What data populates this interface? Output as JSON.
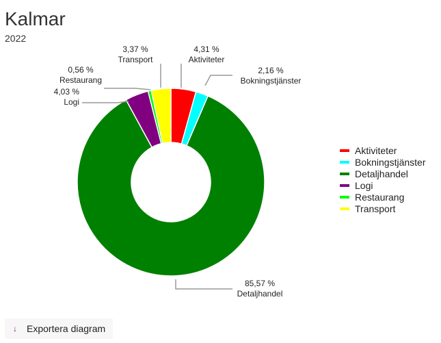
{
  "chart_data": {
    "type": "pie",
    "donut": true,
    "title": "Kalmar",
    "subtitle": "2022",
    "legend_position": "right",
    "slices": [
      {
        "name": "Aktiviteter",
        "value": 4.31,
        "label": "4,31 %",
        "color": "#ff0000"
      },
      {
        "name": "Bokningstjänster",
        "value": 2.16,
        "label": "2,16 %",
        "color": "#00ffff"
      },
      {
        "name": "Detaljhandel",
        "value": 85.57,
        "label": "85,57 %",
        "color": "#008000"
      },
      {
        "name": "Logi",
        "value": 4.03,
        "label": "4,03 %",
        "color": "#800080"
      },
      {
        "name": "Restaurang",
        "value": 0.56,
        "label": "0,56 %",
        "color": "#00ff00"
      },
      {
        "name": "Transport",
        "value": 3.37,
        "label": "3,37 %",
        "color": "#ffff00"
      }
    ]
  },
  "export": {
    "label": "Exportera diagram",
    "icon": "arrow-down-icon"
  }
}
